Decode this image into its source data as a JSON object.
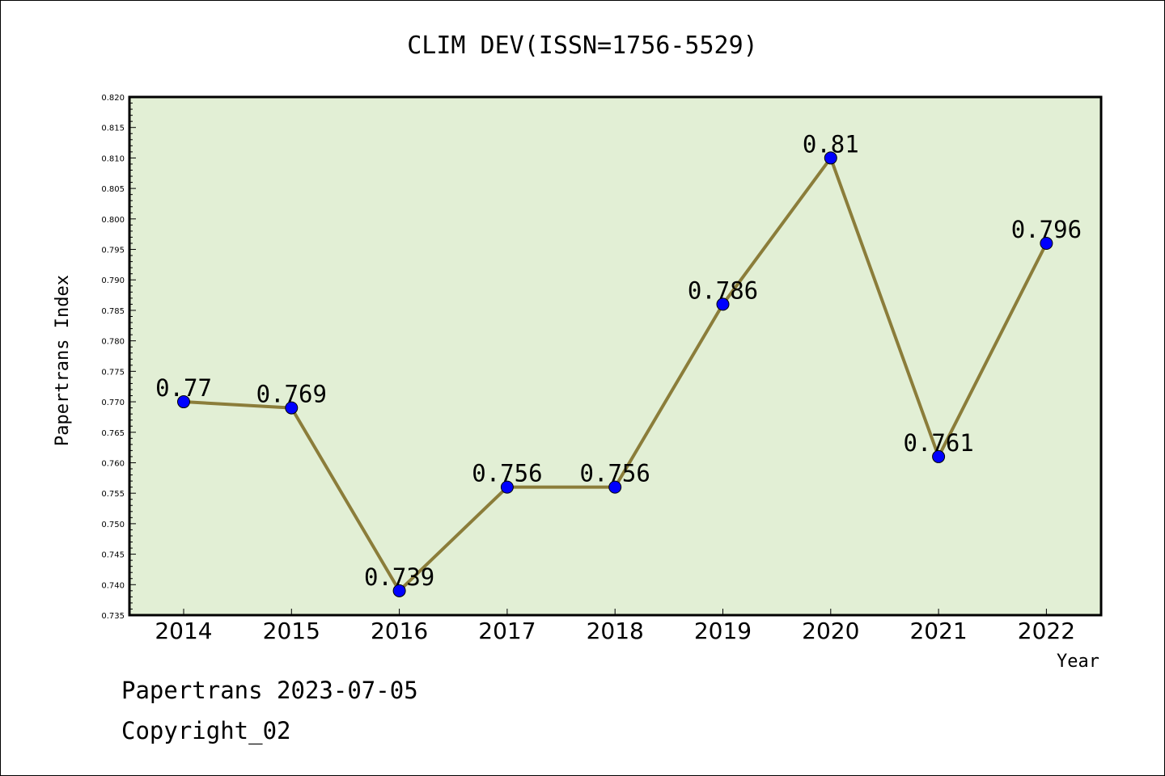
{
  "chart_data": {
    "type": "line",
    "title": "CLIM DEV(ISSN=1756-5529)",
    "xlabel": "Year",
    "ylabel": "Papertrans Index",
    "categories": [
      "2014",
      "2015",
      "2016",
      "2017",
      "2018",
      "2019",
      "2020",
      "2021",
      "2022"
    ],
    "series": [
      {
        "values": [
          0.77,
          0.769,
          0.739,
          0.756,
          0.756,
          0.786,
          0.81,
          0.761,
          0.796
        ],
        "data_labels": [
          "0.77",
          "0.769",
          "0.739",
          "0.756",
          "0.756",
          "0.786",
          "0.81",
          "0.761",
          "0.796"
        ],
        "line_color": "#8b7d3a",
        "marker_color": "#0000ff"
      }
    ],
    "ylim": [
      0.735,
      0.82
    ],
    "yticks": [
      "0.735",
      "0.740",
      "0.745",
      "0.750",
      "0.755",
      "0.760",
      "0.765",
      "0.770",
      "0.775",
      "0.780",
      "0.785",
      "0.790",
      "0.795",
      "0.800",
      "0.805",
      "0.810",
      "0.815",
      "0.820"
    ],
    "plot_background": "#e2efd5",
    "grid": false
  },
  "footer": {
    "line1": "Papertrans 2023-07-05",
    "line2": "Copyright_02"
  }
}
